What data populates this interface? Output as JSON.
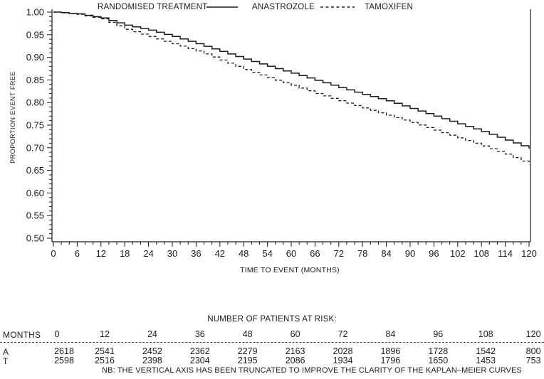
{
  "colors": {
    "line": "#1c1c1c",
    "text": "#1c1c1c",
    "background": "#ffffff"
  },
  "chart_data": {
    "type": "line",
    "subtype": "kaplan-meier",
    "title": "",
    "xlabel": "TIME TO EVENT (MONTHS)",
    "ylabel": "PROPORTION EVENT FREE",
    "xlim": [
      0,
      120
    ],
    "ylim": [
      0.5,
      1.0
    ],
    "x_major_tick_step": 6,
    "x_minor_tick_step": 2,
    "y_major_tick_step": 0.05,
    "y_minor_tick_step": 0.01,
    "grid": "off",
    "y_tick_labels": [
      "1.00",
      "0.95",
      "0.90",
      "0.85",
      "0.80",
      "0.75",
      "0.70",
      "0.65",
      "0.60",
      "0.55",
      "0.50"
    ],
    "x_tick_labels": [
      "0",
      "6",
      "12",
      "18",
      "24",
      "30",
      "36",
      "42",
      "48",
      "54",
      "60",
      "66",
      "72",
      "78",
      "84",
      "90",
      "96",
      "102",
      "108",
      "114",
      "120"
    ],
    "x": [
      0,
      6,
      12,
      18,
      24,
      30,
      36,
      42,
      48,
      54,
      60,
      66,
      72,
      78,
      84,
      90,
      96,
      102,
      108,
      114,
      120
    ],
    "series": [
      {
        "name": "ANASTROZOLE",
        "style": "solid",
        "values": [
          1.0,
          0.996,
          0.987,
          0.971,
          0.96,
          0.946,
          0.93,
          0.913,
          0.896,
          0.88,
          0.865,
          0.849,
          0.833,
          0.818,
          0.804,
          0.787,
          0.77,
          0.753,
          0.736,
          0.717,
          0.698
        ]
      },
      {
        "name": "TAMOXIFEN",
        "style": "dashed",
        "values": [
          1.0,
          0.995,
          0.985,
          0.962,
          0.946,
          0.93,
          0.914,
          0.894,
          0.873,
          0.855,
          0.838,
          0.82,
          0.804,
          0.788,
          0.772,
          0.756,
          0.739,
          0.722,
          0.704,
          0.686,
          0.663
        ]
      }
    ],
    "legend_title": "RANDOMISED TREATMENT",
    "legend_position": "bottom"
  },
  "risk_table": {
    "title": "NUMBER OF PATIENTS AT RISK:",
    "months_label": "MONTHS",
    "months": [
      "0",
      "12",
      "24",
      "36",
      "48",
      "60",
      "72",
      "84",
      "96",
      "108",
      "120"
    ],
    "rows": [
      {
        "label": "A",
        "values": [
          "2618",
          "2541",
          "2452",
          "2362",
          "2279",
          "2163",
          "2028",
          "1896",
          "1728",
          "1542",
          "800"
        ]
      },
      {
        "label": "T",
        "values": [
          "2598",
          "2516",
          "2398",
          "2304",
          "2195",
          "2086",
          "1934",
          "1796",
          "1650",
          "1453",
          "753"
        ]
      }
    ],
    "note": "NB: THE VERTICAL AXIS HAS BEEN TRUNCATED TO IMPROVE THE CLARITY OF THE KAPLAN–MEIER CURVES"
  }
}
